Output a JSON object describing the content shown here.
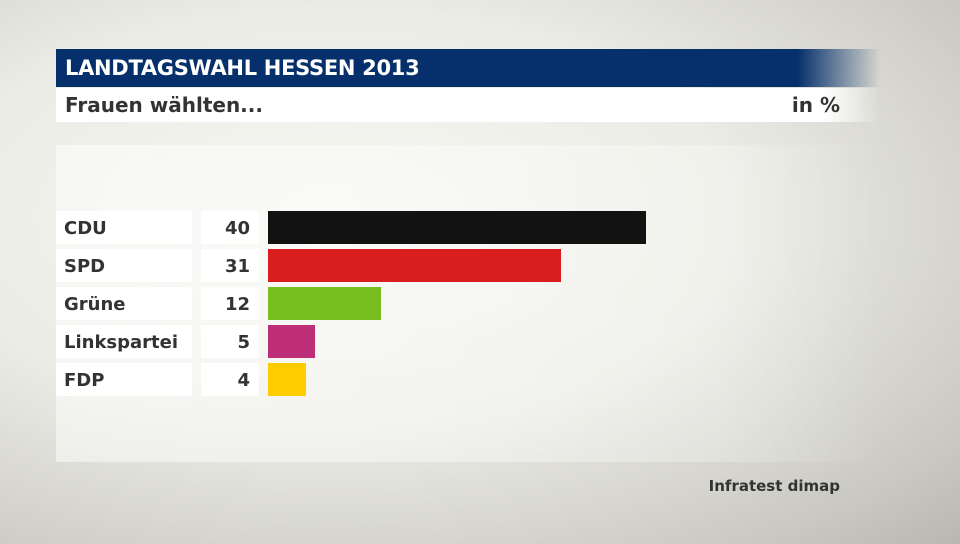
{
  "header": {
    "title": "LANDTAGSWAHL HESSEN 2013",
    "subtitle": "Frauen wählten...",
    "unit": "in %"
  },
  "source": "Infratest dimap",
  "chart_data": {
    "type": "bar",
    "orientation": "horizontal",
    "title": "LANDTAGSWAHL HESSEN 2013",
    "subtitle": "Frauen wählten...",
    "unit": "in %",
    "categories": [
      "CDU",
      "SPD",
      "Grüne",
      "Linkspartei",
      "FDP"
    ],
    "values": [
      40,
      31,
      12,
      5,
      4
    ],
    "colors": [
      "#121212",
      "#d81e1e",
      "#78be1e",
      "#be2d78",
      "#ffcc00"
    ],
    "grid": false,
    "legend": "none"
  }
}
